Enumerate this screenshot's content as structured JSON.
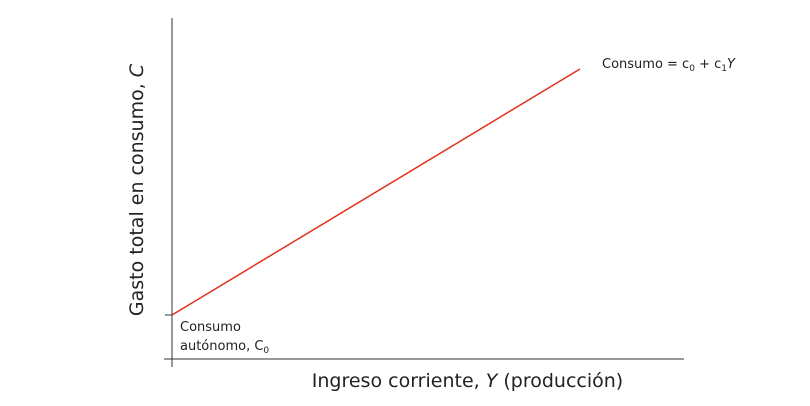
{
  "chart_data": {
    "type": "line",
    "xlabel": {
      "text": "Ingreso corriente, ",
      "var": "Y",
      "suffix": " (producción)"
    },
    "ylabel": {
      "text": "Gasto total en consumo, ",
      "var": "C"
    },
    "series": [
      {
        "name": "Consumo = c0 + c1Y",
        "color": "#e3301c"
      }
    ],
    "annotations": {
      "curve_label": {
        "text": "Consumo = c",
        "sub0": "0",
        "plus": " + c",
        "sub1": "1",
        "var": "Y"
      },
      "intercept_label": {
        "line1": "Consumo",
        "line2": "autónomo, C",
        "sub": "0"
      }
    },
    "axis_color": "#333333"
  }
}
